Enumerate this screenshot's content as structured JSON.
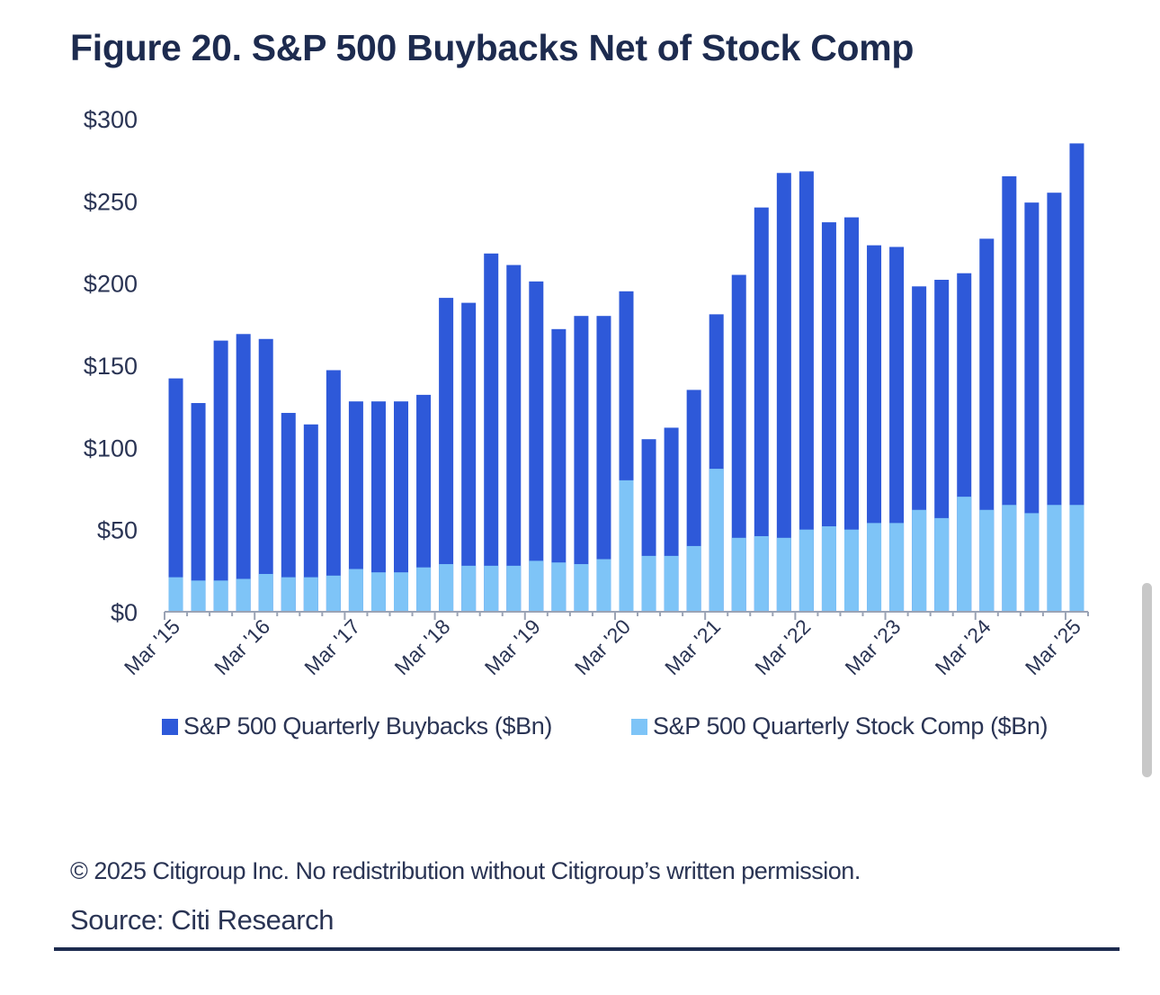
{
  "title": "Figure 20. S&P 500 Buybacks Net of Stock Comp",
  "footer": {
    "copyright": "© 2025 Citigroup Inc. No redistribution without Citigroup’s written permission.",
    "source": "Source: Citi Research"
  },
  "colors": {
    "buybacks": "#2e59d9",
    "stock_comp": "#7ec4f7",
    "axis": "#9aa3b5"
  },
  "chart_data": {
    "type": "bar",
    "stacked": "overlay",
    "title": "Figure 20. S&P 500 Buybacks Net of Stock Comp",
    "xlabel": "",
    "ylabel": "",
    "ylim": [
      0,
      300
    ],
    "y_ticks": [
      "$0",
      "$50",
      "$100",
      "$150",
      "$200",
      "$250",
      "$300"
    ],
    "x_tick_labels": [
      "Mar '15",
      "Mar '16",
      "Mar '17",
      "Mar '18",
      "Mar '19",
      "Mar '20",
      "Mar '21",
      "Mar '22",
      "Mar '23",
      "Mar '24",
      "Mar '25"
    ],
    "grid": false,
    "legend_position": "bottom",
    "categories": [
      "Mar '15",
      "Jun '15",
      "Sep '15",
      "Dec '15",
      "Mar '16",
      "Jun '16",
      "Sep '16",
      "Dec '16",
      "Mar '17",
      "Jun '17",
      "Sep '17",
      "Dec '17",
      "Mar '18",
      "Jun '18",
      "Sep '18",
      "Dec '18",
      "Mar '19",
      "Jun '19",
      "Sep '19",
      "Dec '19",
      "Mar '20",
      "Jun '20",
      "Sep '20",
      "Dec '20",
      "Mar '21",
      "Jun '21",
      "Sep '21",
      "Dec '21",
      "Mar '22",
      "Jun '22",
      "Sep '22",
      "Dec '22",
      "Mar '23",
      "Jun '23",
      "Sep '23",
      "Dec '23",
      "Mar '24",
      "Jun '24",
      "Sep '24",
      "Dec '24",
      "Mar '25"
    ],
    "series": [
      {
        "name": "S&P 500 Quarterly Buybacks ($Bn)",
        "values": [
          142,
          127,
          165,
          169,
          166,
          121,
          114,
          147,
          128,
          128,
          128,
          132,
          191,
          188,
          218,
          211,
          201,
          172,
          180,
          180,
          195,
          105,
          112,
          135,
          181,
          205,
          246,
          267,
          268,
          237,
          240,
          223,
          222,
          198,
          202,
          206,
          227,
          265,
          249,
          255,
          285
        ]
      },
      {
        "name": "S&P 500 Quarterly Stock Comp ($Bn)",
        "values": [
          21,
          19,
          19,
          20,
          23,
          21,
          21,
          22,
          26,
          24,
          24,
          27,
          29,
          28,
          28,
          28,
          31,
          30,
          29,
          32,
          80,
          34,
          34,
          40,
          87,
          45,
          46,
          45,
          50,
          52,
          50,
          54,
          54,
          62,
          57,
          70,
          62,
          65,
          60,
          65,
          65
        ]
      }
    ]
  }
}
